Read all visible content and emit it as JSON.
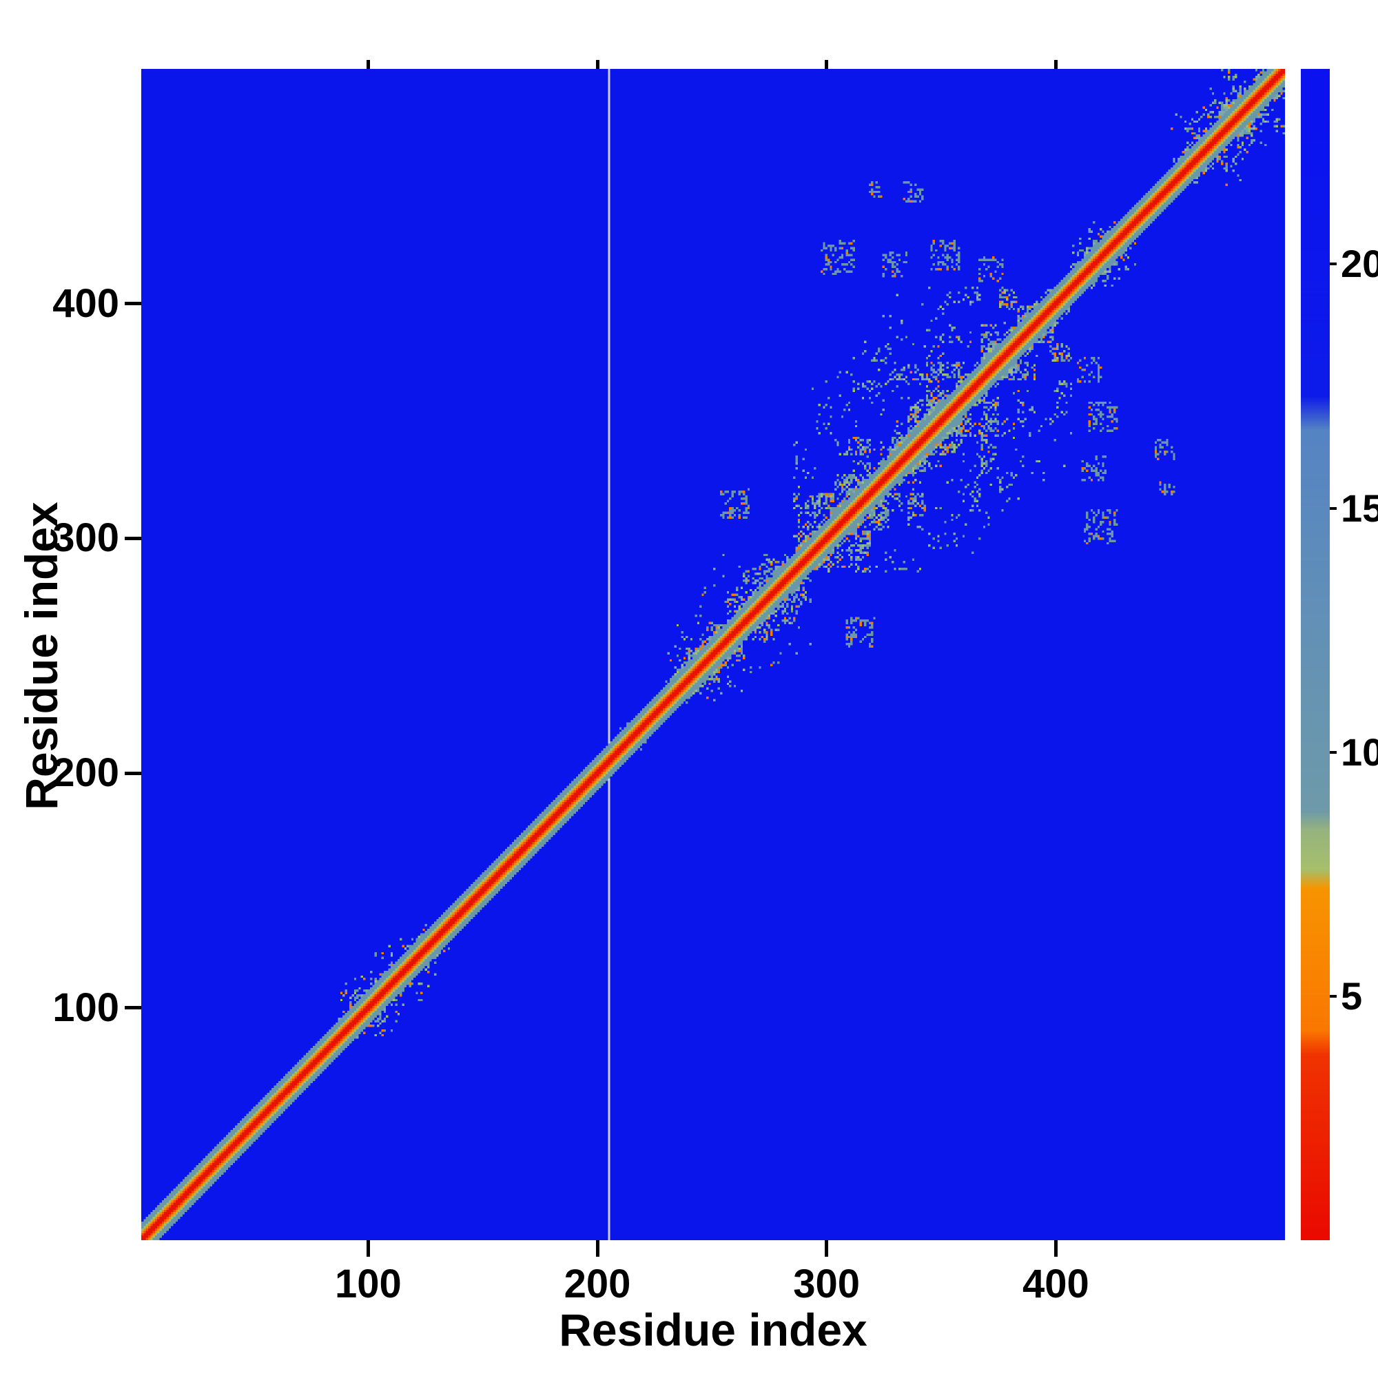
{
  "chart_data": {
    "type": "heatmap",
    "title": "",
    "xlabel": "Residue index",
    "ylabel": "Residue index",
    "x_range": [
      1,
      500
    ],
    "y_range": [
      1,
      500
    ],
    "x_ticks": [
      100,
      200,
      300,
      400
    ],
    "y_ticks": [
      100,
      200,
      300,
      400
    ],
    "grid": false,
    "legend": "colorbar-right",
    "colorbar": {
      "min": 0,
      "max": 24,
      "ticks": [
        5,
        10,
        15,
        20
      ],
      "stops": [
        {
          "v": 0.0,
          "c": "#ea0a00"
        },
        {
          "v": 3.8,
          "c": "#f03300"
        },
        {
          "v": 4.3,
          "c": "#fa7800"
        },
        {
          "v": 7.2,
          "c": "#f89400"
        },
        {
          "v": 7.6,
          "c": "#a6c06b"
        },
        {
          "v": 8.4,
          "c": "#97b37f"
        },
        {
          "v": 8.8,
          "c": "#6e9aaa"
        },
        {
          "v": 12.5,
          "c": "#6391b6"
        },
        {
          "v": 16.6,
          "c": "#5584c4"
        },
        {
          "v": 17.3,
          "c": "#0d1bea"
        },
        {
          "v": 24.0,
          "c": "#0a12f0"
        }
      ]
    },
    "palette": {
      "background": "#0a15ec",
      "diag_core": "#e81200",
      "diag_inner": "#f34e00",
      "diag_orange": "#f98c00",
      "green": "#9fbe6e",
      "teal": "#6b98a8",
      "teal_light": "#7fa8ad",
      "orange_speck": "#f57a00",
      "vline": "rgba(238,242,250,0.85)"
    },
    "diagonal_bands": [
      {
        "max_d": 7,
        "color_key": "teal"
      },
      {
        "max_d": 4,
        "color_key": "green"
      },
      {
        "max_d": 3,
        "color_key": "diag_orange"
      },
      {
        "max_d": 2,
        "color_key": "diag_inner"
      },
      {
        "max_d": 1,
        "color_key": "diag_core"
      }
    ],
    "contact_clusters": [
      {
        "start": 87,
        "end": 132,
        "reach": 27,
        "density": 0.5
      },
      {
        "start": 202,
        "end": 218,
        "reach": 12,
        "density": 0.5
      },
      {
        "start": 230,
        "end": 290,
        "reach": 40,
        "density": 0.48
      },
      {
        "start": 286,
        "end": 404,
        "reach": 80,
        "density": 0.42
      },
      {
        "start": 406,
        "end": 436,
        "reach": 22,
        "density": 0.5
      },
      {
        "start": 450,
        "end": 500,
        "reach": 34,
        "density": 0.5
      }
    ],
    "extra_patches": [
      {
        "i": 305,
        "j": 420,
        "r": 7,
        "p": 0.3
      },
      {
        "i": 330,
        "j": 417,
        "r": 5,
        "p": 0.3
      },
      {
        "i": 352,
        "j": 421,
        "r": 6,
        "p": 0.33
      },
      {
        "i": 372,
        "j": 415,
        "r": 5,
        "p": 0.3
      },
      {
        "i": 260,
        "j": 315,
        "r": 6,
        "p": 0.3
      },
      {
        "i": 338,
        "j": 448,
        "r": 4,
        "p": 0.32
      },
      {
        "i": 322,
        "j": 449,
        "r": 3,
        "p": 0.3
      }
    ],
    "vline_x": 205,
    "seed": 7
  }
}
